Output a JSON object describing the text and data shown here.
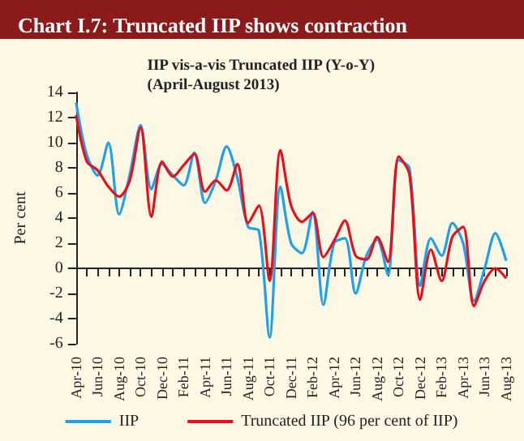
{
  "chart_data": {
    "type": "line",
    "title": "Chart I.7: Truncated IIP shows contraction",
    "subtitle": "IIP vis-a-vis Truncated IIP (Y-o-Y)\n(April-August 2013)",
    "ylabel": "Per cent",
    "categories": [
      "Apr-10",
      null,
      "Jun-10",
      null,
      "Aug-10",
      null,
      "Oct-10",
      null,
      "Dec-10",
      null,
      "Feb-11",
      null,
      "Apr-11",
      null,
      "Jun-11",
      null,
      "Aug-11",
      null,
      "Oct-11",
      null,
      "Dec-11",
      null,
      "Feb-12",
      null,
      "Apr-12",
      null,
      "Jun-12",
      null,
      "Aug-12",
      null,
      "Oct-12",
      null,
      "Dec-12",
      null,
      "Feb-13",
      null,
      "Apr-13",
      null,
      "Jun-13",
      null,
      "Aug-13"
    ],
    "series": [
      {
        "name": "IIP",
        "color": "#1ea0f0",
        "values": [
          13.2,
          9.0,
          7.4,
          10.0,
          4.3,
          7.5,
          11.4,
          6.3,
          8.3,
          7.4,
          6.6,
          9.2,
          5.2,
          7.0,
          9.7,
          7.2,
          3.3,
          3.0,
          -5.5,
          6.5,
          2.0,
          1.2,
          4.5,
          -2.9,
          2.0,
          2.4,
          -2.0,
          1.0,
          2.3,
          -0.5,
          8.6,
          8.0,
          -1.4,
          2.4,
          1.0,
          3.6,
          2.0,
          -2.6,
          0.0,
          2.8,
          0.6
        ]
      },
      {
        "name": "Truncated IIP (96 per cent of IIP)",
        "color": "#e8101a",
        "values": [
          12.2,
          8.5,
          7.8,
          6.5,
          5.7,
          7.0,
          11.2,
          4.1,
          8.5,
          7.3,
          8.2,
          9.1,
          6.1,
          7.0,
          6.2,
          8.3,
          3.6,
          5.0,
          -1.0,
          9.4,
          5.0,
          3.7,
          4.4,
          0.9,
          2.2,
          3.8,
          1.0,
          0.7,
          2.5,
          0.5,
          8.9,
          7.5,
          -2.5,
          1.5,
          -1.0,
          2.5,
          3.3,
          -3.0,
          -1.0,
          0.0,
          -0.8
        ]
      }
    ],
    "ylim": [
      -6,
      14
    ],
    "yticks": [
      -6,
      -4,
      -2,
      0,
      2,
      4,
      6,
      8,
      10,
      12,
      14
    ],
    "legend": "bottom",
    "line_style": "solid"
  }
}
